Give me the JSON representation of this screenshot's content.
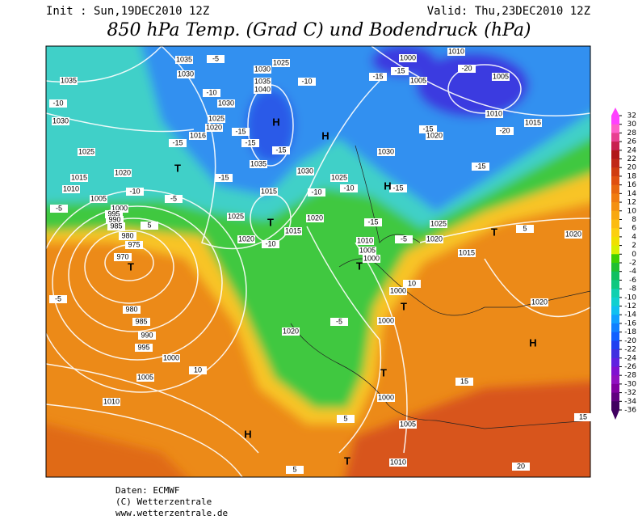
{
  "header": {
    "init": "Init : Sun,19DEC2010 12Z",
    "valid": "Valid: Thu,23DEC2010 12Z",
    "title": "850 hPa Temp. (Grad C) und Bodendruck (hPa)"
  },
  "map": {
    "labels": [
      "1035",
      "-5",
      "1030",
      "1025",
      "1030",
      "1035",
      "1040",
      "-10",
      "1035",
      "-10",
      "1030",
      "1030",
      "-10",
      "1025",
      "1020",
      "-15",
      "-15",
      "-15",
      "1016",
      "-15",
      "1025",
      "1035",
      "1020",
      "1030",
      "-15",
      "1015",
      "1010",
      "-10",
      "1005",
      "1015",
      "1025",
      "-10",
      "-10",
      "1000",
      "995",
      "990",
      "985",
      "980",
      "975",
      "970",
      "1025",
      "1020",
      "1015",
      "1020",
      "-10",
      "1030",
      "-15",
      "-15",
      "1025",
      "1010",
      "1005",
      "1000",
      "-5",
      "1020",
      "1015",
      "1000",
      "10",
      "1000",
      "-5",
      "1020",
      "980",
      "985",
      "990",
      "995",
      "1000",
      "10",
      "1005",
      "1010",
      "1000",
      "1005",
      "1010",
      "5",
      "15",
      "5",
      "1020",
      "1020",
      "5",
      "15",
      "20",
      "-5",
      "-5",
      "5",
      "-5",
      "1000",
      "-15",
      "-15",
      "1005",
      "-20",
      "1010",
      "1005",
      "1010",
      "-20",
      "1015",
      "-15",
      "1020",
      "-15",
      "H",
      "H",
      "H",
      "T",
      "T",
      "T",
      "T",
      "T",
      "T",
      "T",
      "H",
      "H",
      "T"
    ]
  },
  "colorbar": {
    "ticks": [
      32,
      30,
      28,
      26,
      24,
      22,
      20,
      18,
      16,
      14,
      12,
      10,
      8,
      6,
      4,
      2,
      0,
      -2,
      -4,
      -6,
      -8,
      -10,
      -12,
      -14,
      -16,
      -18,
      -20,
      -22,
      -24,
      -26,
      -28,
      -30,
      -32,
      -34,
      -36
    ],
    "colors": [
      "#ff40ff",
      "#ff60c8",
      "#e84090",
      "#c82050",
      "#b01818",
      "#c02818",
      "#d03c10",
      "#e05010",
      "#e86810",
      "#f07c10",
      "#f49010",
      "#f8a810",
      "#fcbc10",
      "#fcd010",
      "#f0e000",
      "#d8f000",
      "#40d000",
      "#20c030",
      "#10c060",
      "#10c880",
      "#10d0b0",
      "#10d0d0",
      "#10c0f0",
      "#10a0ff",
      "#1080ff",
      "#1060ff",
      "#2040f0",
      "#4030e0",
      "#6020e0",
      "#8010d0",
      "#9010c0",
      "#8000a0",
      "#600080",
      "#400060"
    ]
  },
  "footer": {
    "source": "Daten: ECMWF",
    "copyright": "(C) Wetterzentrale",
    "url": "www.wetterzentrale.de"
  }
}
